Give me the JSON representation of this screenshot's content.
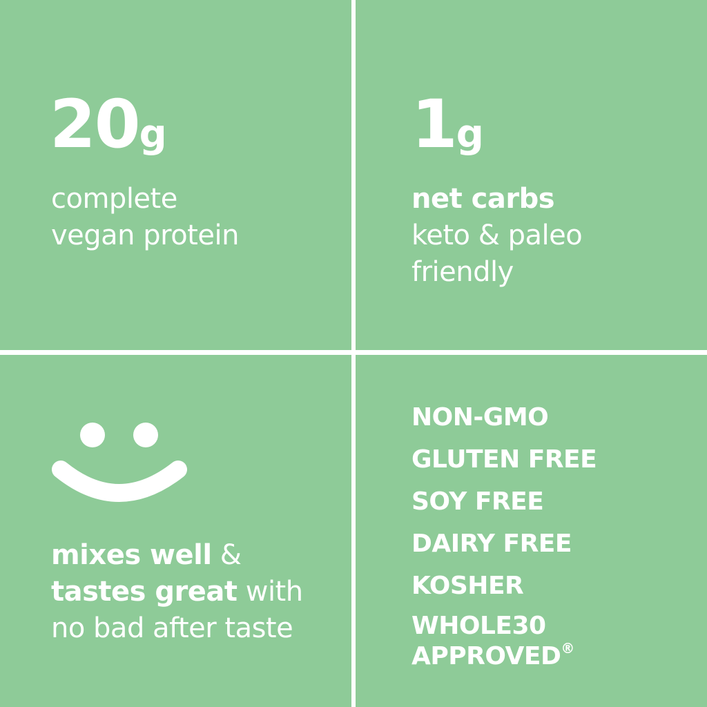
{
  "protein": {
    "value": "20",
    "unit": "g",
    "line1": "complete",
    "line2": "vegan protein"
  },
  "carbs": {
    "value": "1",
    "unit": "g",
    "bold": "net carbs",
    "line2": "keto & paleo",
    "line3": "friendly"
  },
  "taste": {
    "bold1": "mixes well",
    "rest1": " &",
    "bold2": "tastes great",
    "rest2": " with",
    "line3": "no bad after taste",
    "icon": "smiley-face-icon"
  },
  "claims": [
    "NON-GMO",
    "GLUTEN FREE",
    "SOY FREE",
    "DAIRY FREE",
    "KOSHER",
    "WHOLE30",
    "APPROVED"
  ],
  "registered_mark": "®",
  "colors": {
    "background": "#8ECB98",
    "foreground": "#FFFFFF"
  }
}
